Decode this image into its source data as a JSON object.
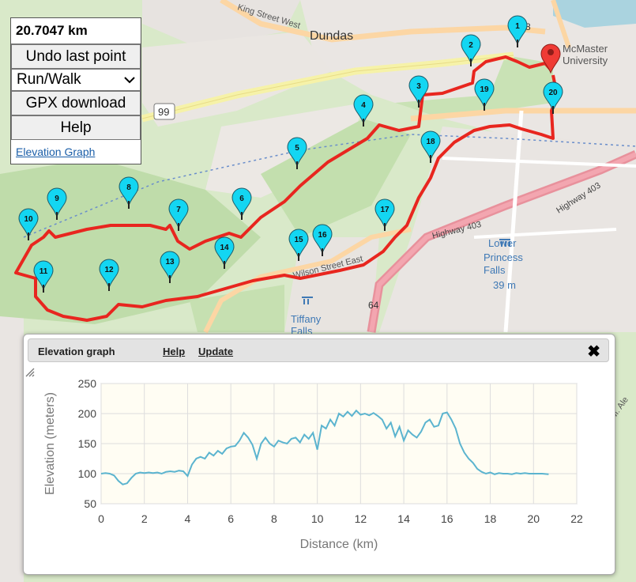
{
  "map": {
    "labels": {
      "dundas": "Dundas",
      "king_street": "King Street West",
      "mcmaster": "McMaster\nUniversity",
      "highway_403_a": "Highway 403",
      "highway_403_b": "Highway 403",
      "wilson_street": "Wilson Street East",
      "lower_princess": "Lower\nPrincess\nFalls",
      "falls_height": "39 m",
      "tiffany": "Tiffany\nFalls",
      "route_99": "99",
      "route_64": "64",
      "route_8": "8",
      "ale": "M. Ale"
    },
    "waypoints": [
      "1",
      "2",
      "3",
      "4",
      "5",
      "6",
      "7",
      "8",
      "9",
      "10",
      "11",
      "12",
      "13",
      "14",
      "15",
      "16",
      "17",
      "18",
      "19",
      "20"
    ],
    "route_color": "#e8261f",
    "pin_color": "#13d6f2"
  },
  "panel": {
    "distance": "20.7047 km",
    "undo_label": "Undo last point",
    "mode_value": "Run/Walk",
    "gpx_label": "GPX download",
    "help_label": "Help",
    "elevation_link": "Elevation Graph"
  },
  "elevation_window": {
    "title": "Elevation graph",
    "help_label": "Help",
    "update_label": "Update",
    "close_glyph": "✖"
  },
  "chart_data": {
    "type": "line",
    "xlabel": "Distance (km)",
    "ylabel": "Elevation (meters)",
    "xlim": [
      0,
      22
    ],
    "ylim": [
      50,
      250
    ],
    "xticks": [
      0,
      2,
      4,
      6,
      8,
      10,
      12,
      14,
      16,
      18,
      20,
      22
    ],
    "yticks": [
      50,
      100,
      150,
      200,
      250
    ],
    "grid": true,
    "line_color": "#5bb4cf",
    "x": [
      0,
      0.2,
      0.4,
      0.6,
      0.8,
      1.0,
      1.2,
      1.4,
      1.6,
      1.8,
      2.0,
      2.2,
      2.4,
      2.6,
      2.8,
      3.0,
      3.2,
      3.4,
      3.6,
      3.8,
      4.0,
      4.2,
      4.4,
      4.6,
      4.8,
      5.0,
      5.2,
      5.4,
      5.6,
      5.8,
      6.0,
      6.2,
      6.4,
      6.6,
      6.8,
      7.0,
      7.2,
      7.4,
      7.6,
      7.8,
      8.0,
      8.2,
      8.4,
      8.6,
      8.8,
      9.0,
      9.2,
      9.4,
      9.6,
      9.8,
      10.0,
      10.2,
      10.4,
      10.6,
      10.8,
      11.0,
      11.2,
      11.4,
      11.6,
      11.8,
      12.0,
      12.2,
      12.4,
      12.6,
      12.8,
      13.0,
      13.2,
      13.4,
      13.6,
      13.8,
      14.0,
      14.2,
      14.4,
      14.6,
      14.8,
      15.0,
      15.2,
      15.4,
      15.6,
      15.8,
      16.0,
      16.2,
      16.4,
      16.6,
      16.8,
      17.0,
      17.2,
      17.4,
      17.6,
      17.8,
      18.0,
      18.2,
      18.4,
      18.6,
      18.8,
      19.0,
      19.2,
      19.4,
      19.6,
      19.8,
      20.0,
      20.2,
      20.4,
      20.7
    ],
    "y": [
      100,
      101,
      100,
      97,
      88,
      82,
      84,
      93,
      100,
      102,
      101,
      102,
      101,
      102,
      100,
      103,
      104,
      103,
      105,
      104,
      96,
      115,
      125,
      128,
      125,
      135,
      130,
      138,
      133,
      142,
      145,
      146,
      155,
      168,
      160,
      148,
      125,
      150,
      160,
      150,
      145,
      155,
      152,
      150,
      158,
      160,
      152,
      165,
      158,
      168,
      140,
      180,
      175,
      190,
      180,
      200,
      195,
      203,
      196,
      205,
      198,
      200,
      197,
      201,
      196,
      190,
      175,
      185,
      162,
      178,
      155,
      172,
      165,
      160,
      170,
      185,
      190,
      178,
      180,
      200,
      202,
      190,
      175,
      150,
      135,
      125,
      118,
      108,
      103,
      100,
      102,
      99,
      101,
      100,
      100,
      99,
      101,
      100,
      101,
      100,
      100,
      100,
      100,
      99
    ]
  }
}
